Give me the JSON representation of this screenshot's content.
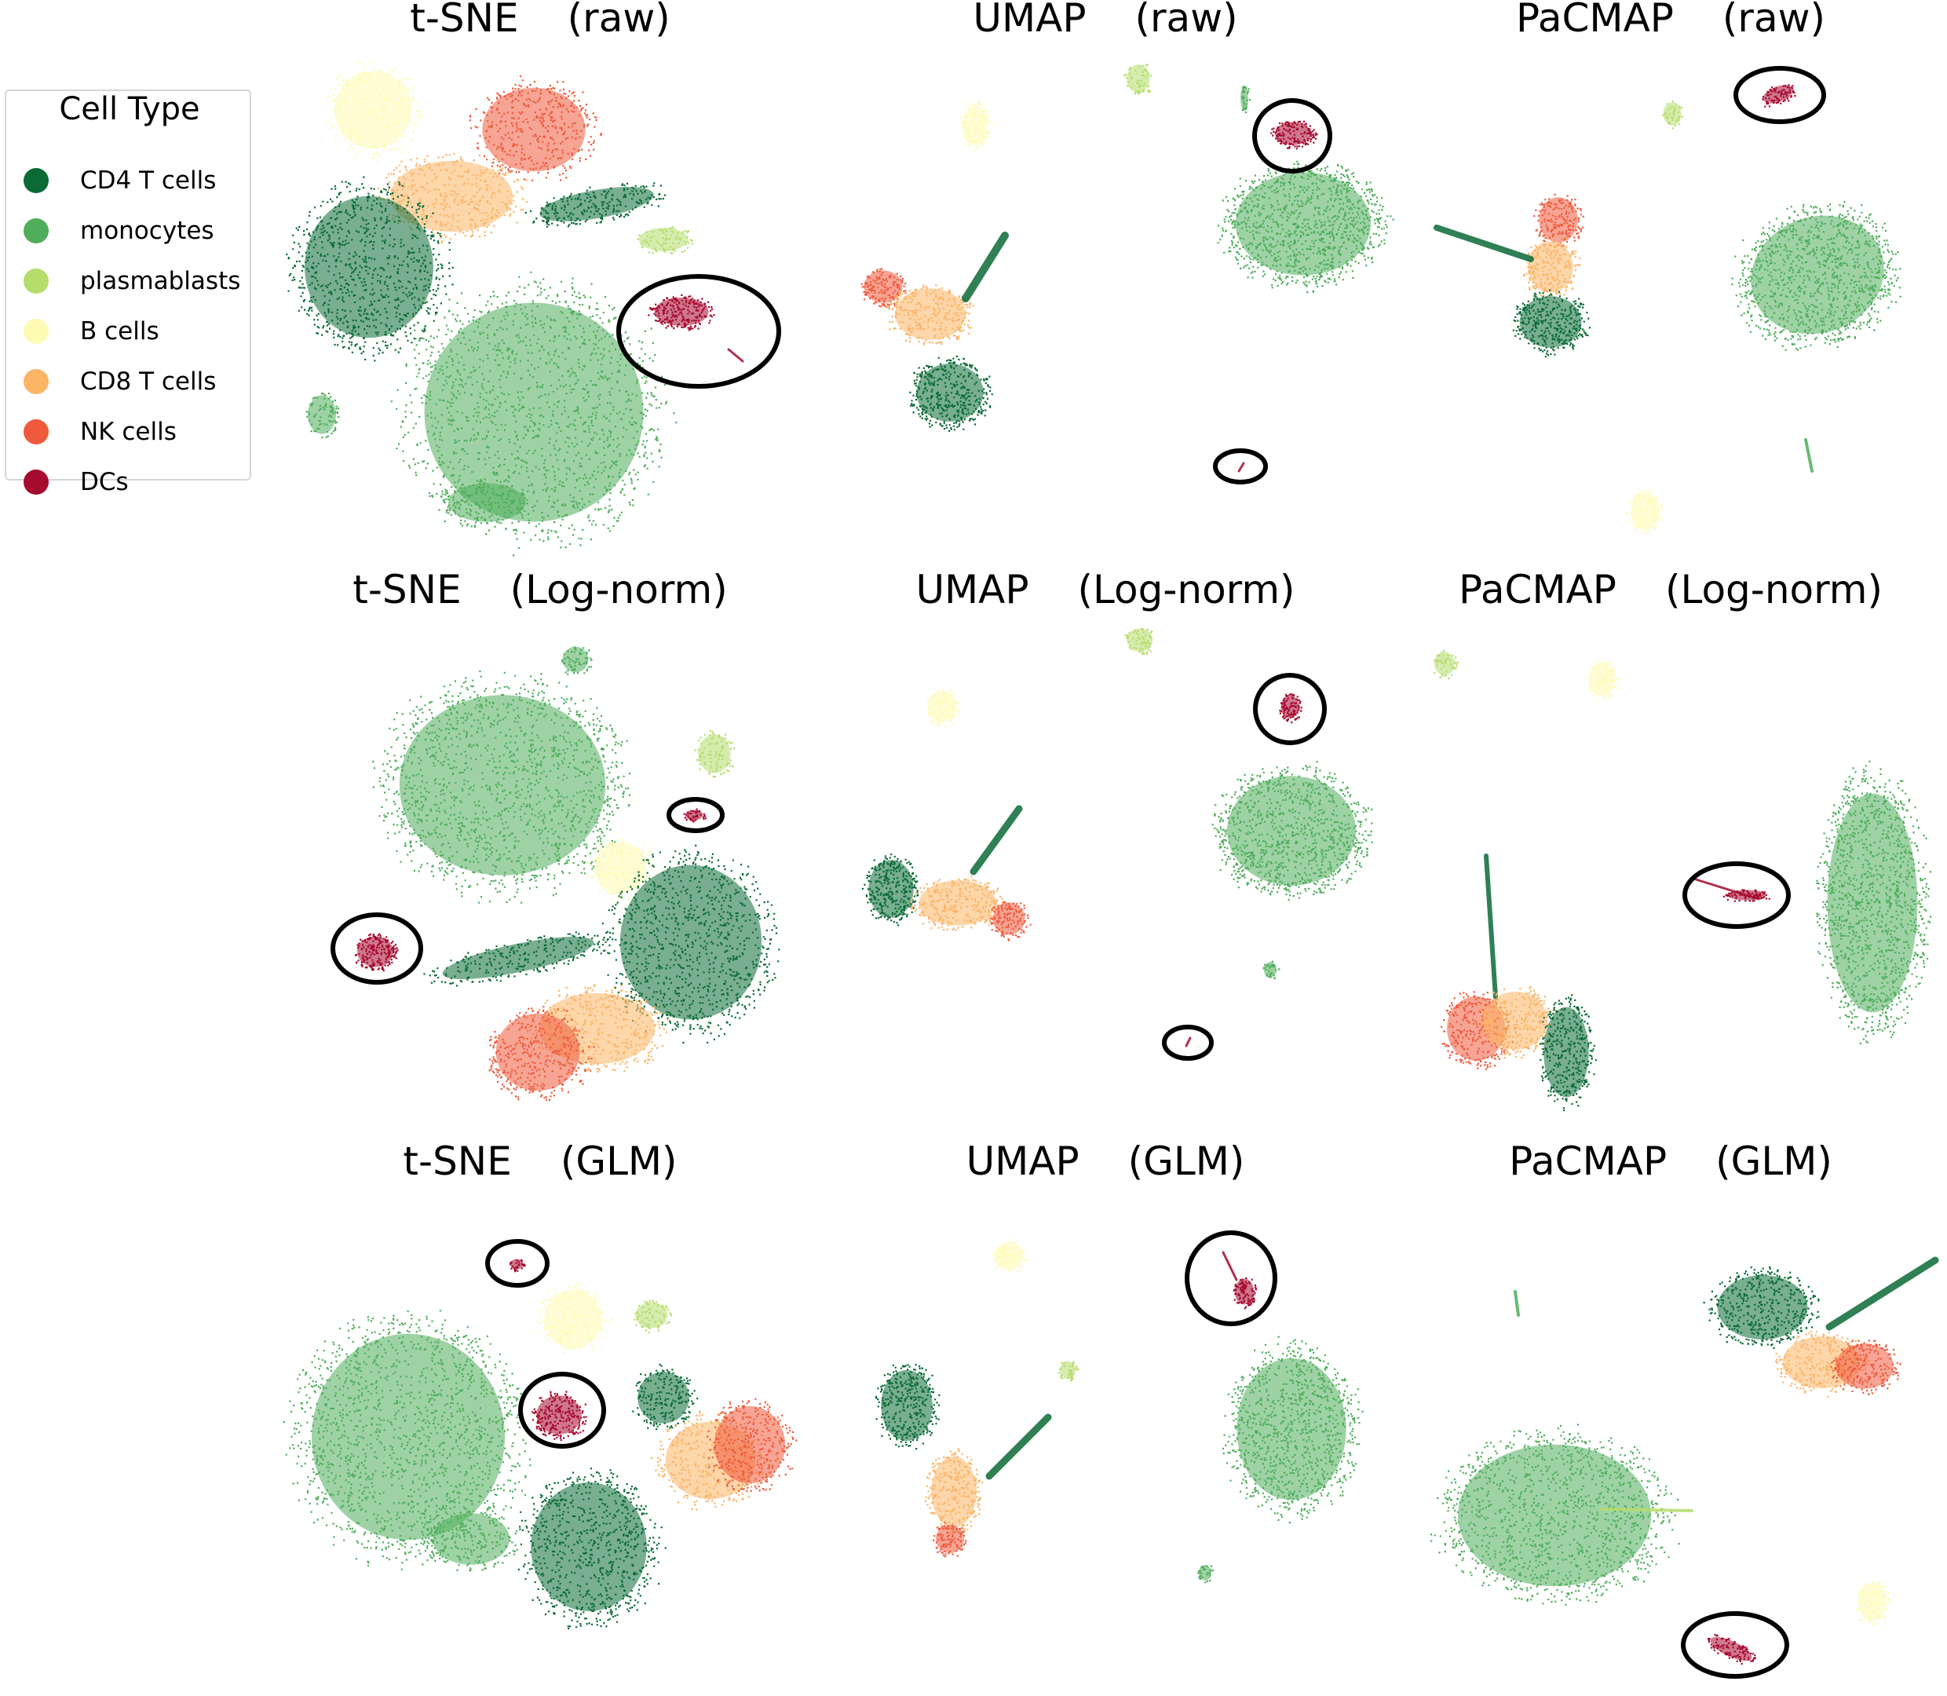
{
  "chart_data": {
    "type": "scatter",
    "legend": {
      "title": "Cell Type",
      "placement": "left",
      "entries": [
        {
          "label": "CD4 T cells",
          "color": "#0b6b37"
        },
        {
          "label": "monocytes",
          "color": "#4fad5b"
        },
        {
          "label": "plasmablasts",
          "color": "#b5dd6b"
        },
        {
          "label": "B cells",
          "color": "#fdfbb4"
        },
        {
          "label": "CD8 T cells",
          "color": "#fcb465"
        },
        {
          "label": "NK cells",
          "color": "#ef5a3c"
        },
        {
          "label": "DCs",
          "color": "#a60a2f"
        }
      ]
    },
    "axes_visible": false,
    "grid": false,
    "highlight": "black ellipses circle the DCs cluster in every panel",
    "panels": [
      {
        "method": "t-SNE",
        "norm": "(raw)"
      },
      {
        "method": "UMAP",
        "norm": "(raw)"
      },
      {
        "method": "PaCMAP",
        "norm": "(raw)"
      },
      {
        "method": "t-SNE",
        "norm": "(Log-norm)"
      },
      {
        "method": "UMAP",
        "norm": "(Log-norm)"
      },
      {
        "method": "PaCMAP",
        "norm": "(Log-norm)"
      },
      {
        "method": "t-SNE",
        "norm": "(GLM)"
      },
      {
        "method": "UMAP",
        "norm": "(GLM)"
      },
      {
        "method": "PaCMAP",
        "norm": "(GLM)"
      }
    ]
  }
}
